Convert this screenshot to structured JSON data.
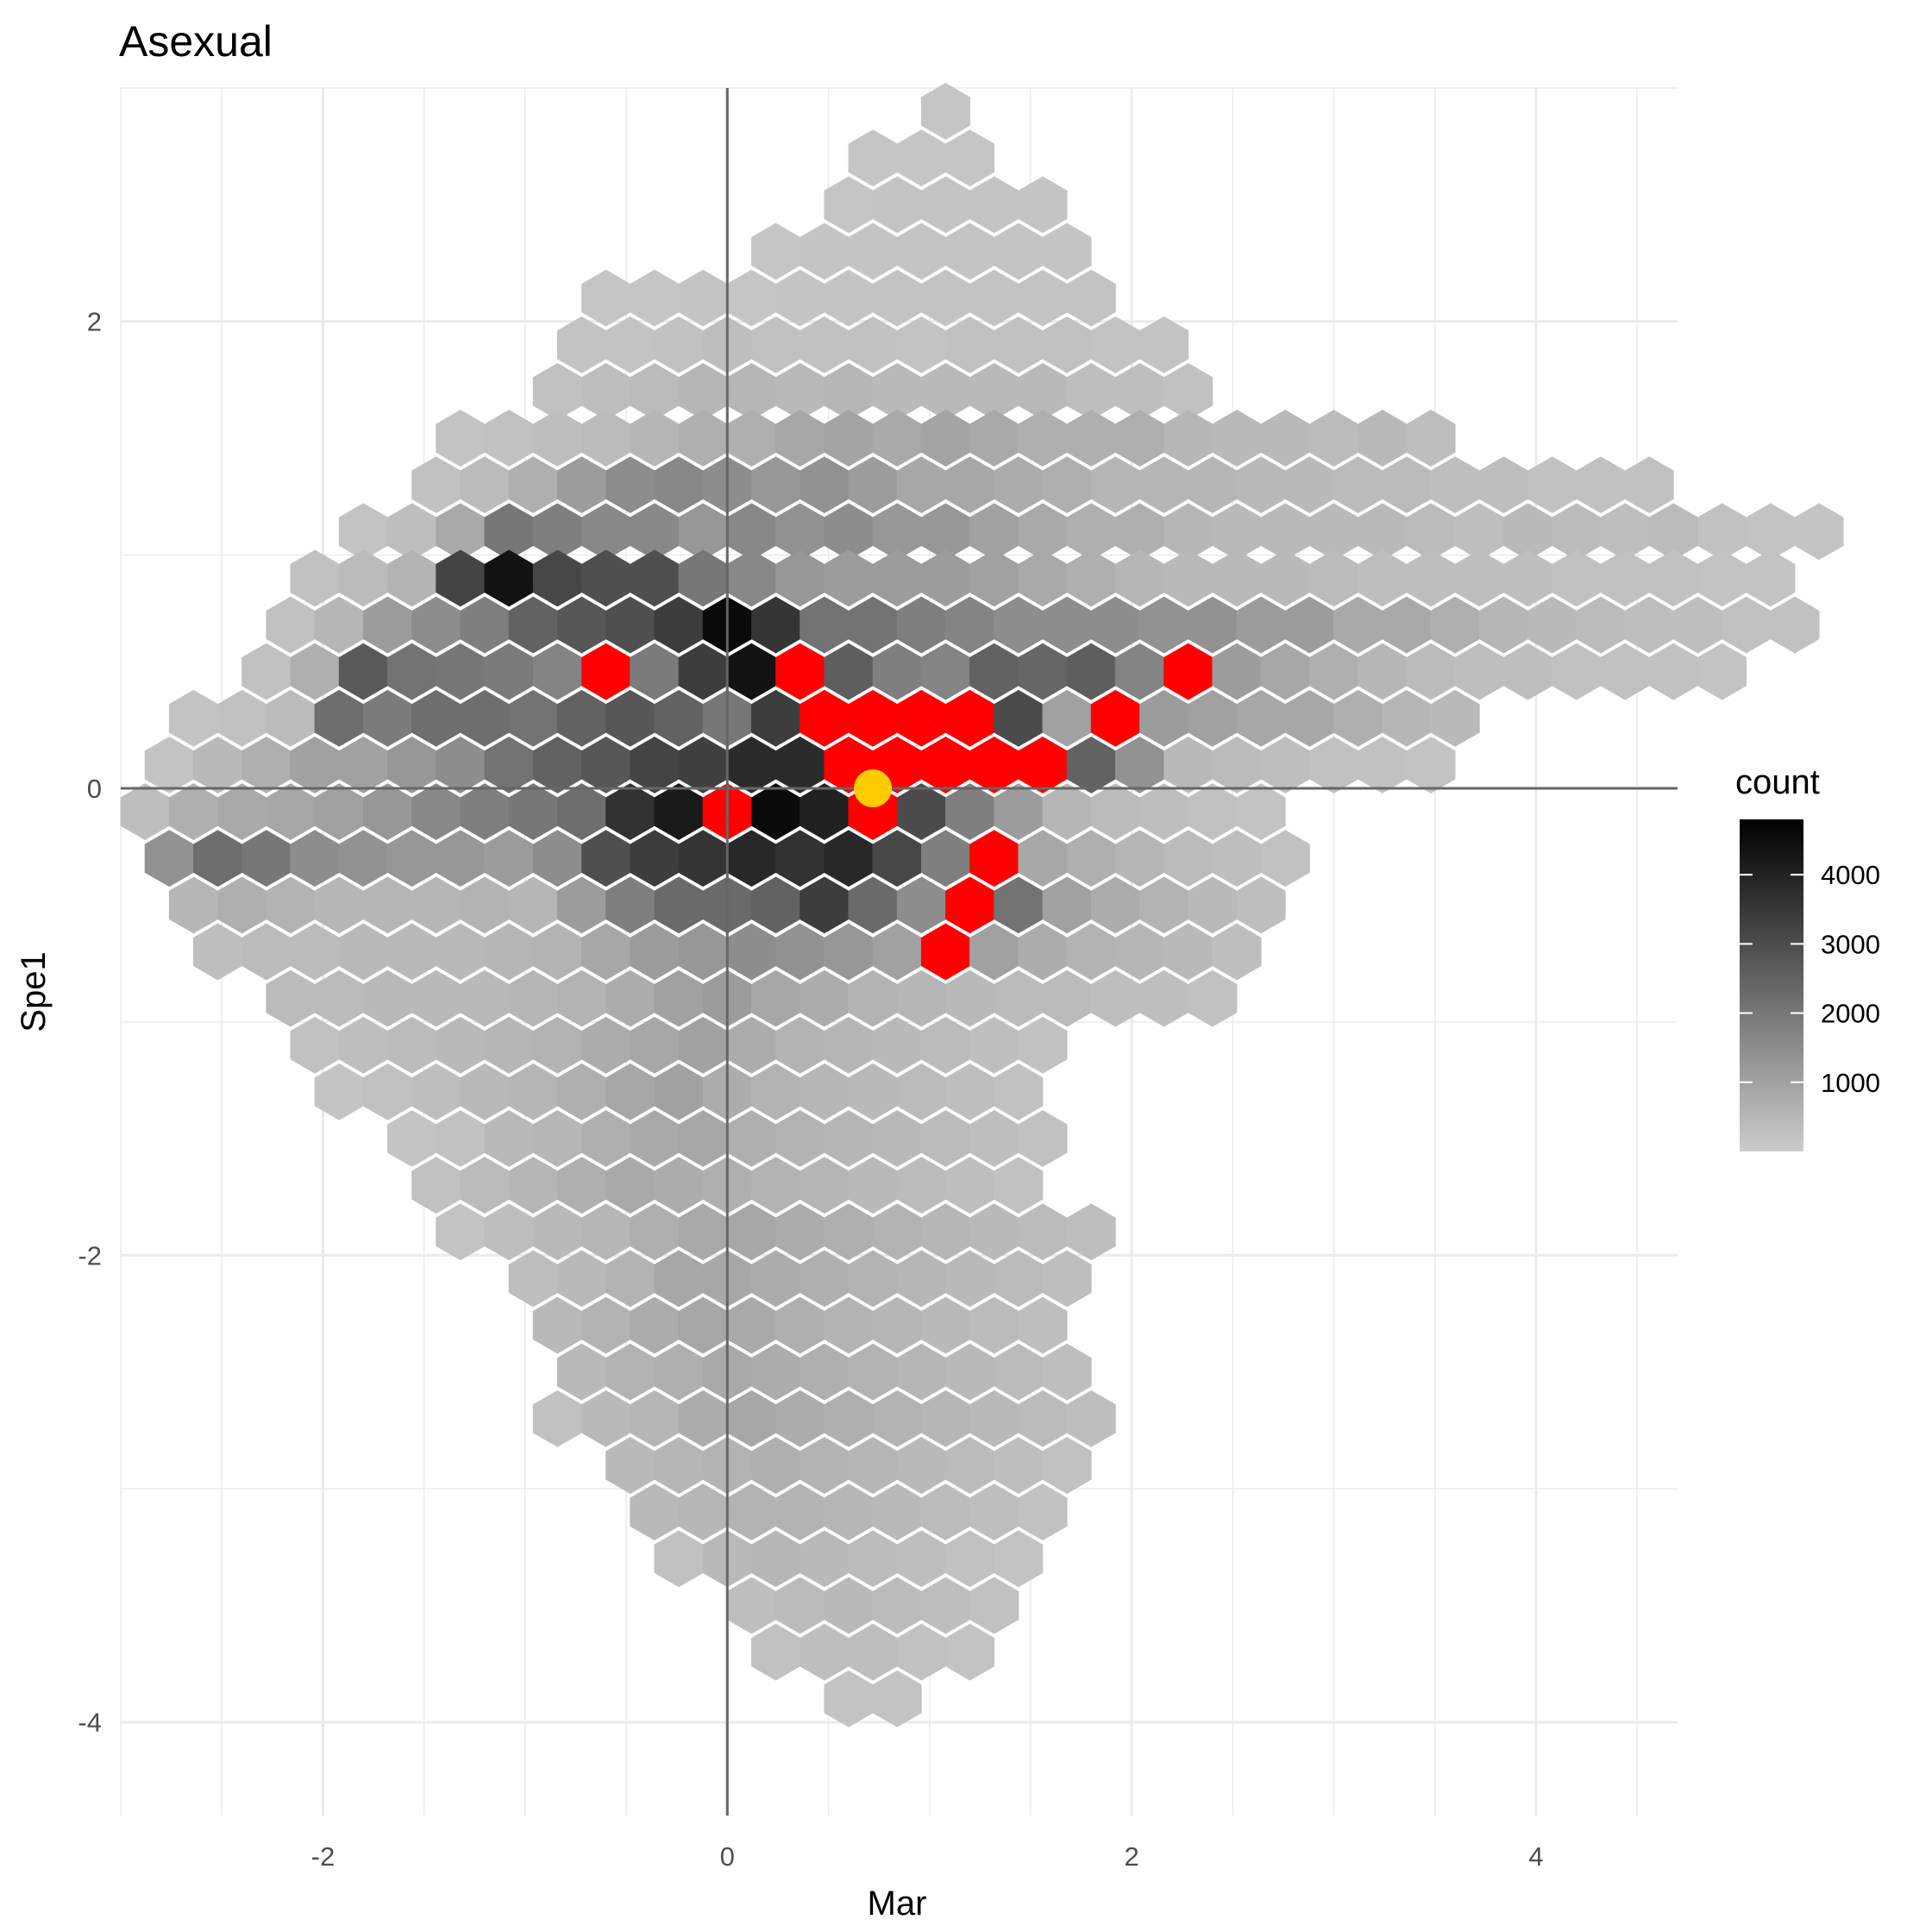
{
  "chart_data": {
    "type": "heatmap",
    "subtype": "hexbin",
    "title": "Asexual",
    "xlabel": "Mar",
    "ylabel": "Spe1",
    "xlim": [
      -3.0,
      4.7
    ],
    "ylim": [
      -4.4,
      3.0
    ],
    "x_ticks": [
      -2,
      0,
      2,
      4
    ],
    "x_tick_labels": [
      "-2",
      "0",
      "2",
      "4"
    ],
    "y_ticks": [
      -4,
      -2,
      0,
      2
    ],
    "y_tick_labels": [
      "-4",
      "-2",
      "0",
      "2"
    ],
    "grid": true,
    "reference_lines": {
      "x": 0,
      "y": 0
    },
    "hex_spacing": {
      "dx": 0.24,
      "dy": 0.2
    },
    "legend": {
      "title": "count",
      "position": "right",
      "range": [
        0,
        4800
      ],
      "ticks": [
        1000,
        2000,
        3000,
        4000
      ],
      "tick_labels": [
        "1000",
        "2000",
        "3000",
        "4000"
      ],
      "color_low": "#cccccc",
      "color_high": "#000000"
    },
    "hex_rows": [
      {
        "y": 2.9,
        "from": 1.08,
        "counts": [
          50
        ]
      },
      {
        "y": 2.7,
        "from": 0.72,
        "counts": [
          50,
          50,
          50
        ]
      },
      {
        "y": 2.5,
        "from": 0.6,
        "counts": [
          50,
          60,
          60,
          60,
          60
        ]
      },
      {
        "y": 2.3,
        "from": 0.24,
        "counts": [
          50,
          60,
          60,
          60,
          60,
          60,
          60
        ]
      },
      {
        "y": 2.1,
        "from": -0.6,
        "counts": [
          50,
          50,
          60,
          50,
          60,
          60,
          80,
          80,
          80,
          80,
          80
        ]
      },
      {
        "y": 1.9,
        "from": -0.72,
        "counts": [
          80,
          80,
          100,
          130,
          100,
          100,
          100,
          80,
          100,
          100,
          100,
          80,
          80
        ]
      },
      {
        "y": 1.7,
        "from": -0.84,
        "counts": [
          100,
          130,
          180,
          250,
          250,
          200,
          250,
          200,
          200,
          200,
          200,
          130,
          130,
          100
        ]
      },
      {
        "y": 1.5,
        "from": -1.32,
        "counts": [
          80,
          100,
          130,
          180,
          250,
          350,
          350,
          500,
          550,
          450,
          550,
          450,
          350,
          350,
          350,
          250,
          200,
          200,
          180,
          200,
          130
        ]
      },
      {
        "y": 1.3,
        "from": -1.44,
        "counts": [
          100,
          180,
          350,
          700,
          1000,
          1100,
          1000,
          800,
          900,
          700,
          500,
          500,
          400,
          350,
          250,
          250,
          250,
          200,
          200,
          180,
          180,
          130,
          130,
          100,
          100,
          100
        ]
      },
      {
        "y": 1.1,
        "from": -1.8,
        "counts": [
          80,
          130,
          450,
          1500,
          1300,
          1100,
          1100,
          800,
          1100,
          900,
          1000,
          800,
          800,
          600,
          450,
          350,
          350,
          250,
          200,
          200,
          200,
          200,
          180,
          130,
          200,
          180,
          130,
          180,
          100,
          80,
          60
        ]
      },
      {
        "y": 0.9,
        "from": -2.04,
        "counts": [
          100,
          180,
          300,
          2800,
          4200,
          2700,
          2500,
          2500,
          1500,
          1100,
          800,
          700,
          700,
          700,
          600,
          450,
          350,
          250,
          200,
          200,
          200,
          180,
          130,
          130,
          130,
          130,
          100,
          100,
          100,
          80,
          80
        ]
      },
      {
        "y": 0.7,
        "from": -2.16,
        "counts": [
          100,
          250,
          700,
          1000,
          1300,
          2000,
          2300,
          2500,
          3000,
          4500,
          3200,
          1600,
          1600,
          1300,
          1200,
          1000,
          1000,
          1000,
          900,
          900,
          700,
          700,
          450,
          450,
          350,
          250,
          200,
          180,
          130,
          130,
          100,
          100
        ]
      },
      {
        "y": 0.5,
        "from": -2.28,
        "counts": [
          100,
          350,
          2200,
          1600,
          1500,
          1400,
          1200,
          5000,
          1400,
          3000,
          4200,
          5000,
          2100,
          1300,
          1200,
          2000,
          1900,
          2100,
          1200,
          5000,
          700,
          500,
          350,
          250,
          180,
          130,
          130,
          100,
          100,
          100,
          80
        ]
      },
      {
        "y": 0.3,
        "from": -2.64,
        "counts": [
          80,
          100,
          180,
          1700,
          1400,
          1700,
          1700,
          1600,
          2000,
          2300,
          2000,
          1500,
          3000,
          5000,
          5000,
          5000,
          5000,
          2600,
          600,
          5000,
          700,
          600,
          500,
          500,
          350,
          250,
          200
        ]
      },
      {
        "y": 0.1,
        "from": -2.76,
        "counts": [
          80,
          200,
          350,
          600,
          600,
          800,
          1000,
          1600,
          2000,
          2300,
          2800,
          2900,
          3500,
          3500,
          5000,
          5000,
          5000,
          5000,
          5000,
          2000,
          900,
          200,
          180,
          130,
          100,
          100,
          80
        ]
      },
      {
        "y": -0.1,
        "from": -2.88,
        "counts": [
          130,
          350,
          450,
          500,
          600,
          800,
          1100,
          1300,
          1500,
          1700,
          3300,
          4000,
          5000,
          4500,
          3800,
          5000,
          2600,
          1300,
          700,
          250,
          180,
          130,
          100,
          80
        ]
      },
      {
        "y": -0.3,
        "from": -2.76,
        "counts": [
          900,
          1700,
          1500,
          1000,
          900,
          800,
          800,
          700,
          1000,
          2500,
          3000,
          3200,
          3600,
          3300,
          3600,
          2700,
          1300,
          5000,
          500,
          350,
          250,
          180,
          130,
          100
        ]
      },
      {
        "y": -0.5,
        "from": -2.64,
        "counts": [
          250,
          350,
          300,
          250,
          250,
          250,
          300,
          250,
          700,
          1300,
          1800,
          1800,
          2000,
          3000,
          1800,
          1000,
          5000,
          1600,
          600,
          400,
          300,
          200,
          130
        ]
      },
      {
        "y": -0.7,
        "from": -2.52,
        "counts": [
          130,
          180,
          180,
          200,
          200,
          200,
          250,
          300,
          500,
          700,
          800,
          1000,
          900,
          800,
          600,
          5000,
          600,
          400,
          300,
          250,
          200,
          130
        ]
      },
      {
        "y": -0.9,
        "from": -2.16,
        "counts": [
          180,
          180,
          200,
          200,
          200,
          250,
          300,
          400,
          600,
          700,
          500,
          400,
          300,
          250,
          200,
          180,
          180,
          130,
          130,
          100
        ]
      },
      {
        "y": -1.1,
        "from": -2.04,
        "counts": [
          100,
          130,
          180,
          200,
          250,
          300,
          400,
          500,
          600,
          400,
          300,
          250,
          200,
          180,
          130,
          100
        ]
      },
      {
        "y": -1.3,
        "from": -1.92,
        "counts": [
          60,
          100,
          130,
          200,
          250,
          350,
          500,
          600,
          400,
          300,
          250,
          200,
          180,
          130,
          100
        ]
      },
      {
        "y": -1.5,
        "from": -1.56,
        "counts": [
          60,
          100,
          200,
          250,
          350,
          450,
          500,
          350,
          300,
          250,
          200,
          180,
          130,
          100
        ]
      },
      {
        "y": -1.7,
        "from": -1.44,
        "counts": [
          100,
          180,
          250,
          350,
          450,
          400,
          350,
          300,
          250,
          200,
          180,
          130,
          100
        ]
      },
      {
        "y": -1.9,
        "from": -1.32,
        "counts": [
          80,
          130,
          200,
          250,
          350,
          450,
          500,
          400,
          350,
          300,
          250,
          200,
          180,
          130
        ]
      },
      {
        "y": -2.1,
        "from": -0.96,
        "counts": [
          130,
          200,
          300,
          500,
          500,
          400,
          350,
          300,
          250,
          200,
          180,
          130
        ]
      },
      {
        "y": -2.3,
        "from": -0.84,
        "counts": [
          200,
          300,
          400,
          500,
          450,
          350,
          300,
          250,
          200,
          180,
          130
        ]
      },
      {
        "y": -2.5,
        "from": -0.72,
        "counts": [
          200,
          300,
          350,
          450,
          400,
          350,
          300,
          250,
          200,
          180,
          130
        ]
      },
      {
        "y": -2.7,
        "from": -0.84,
        "counts": [
          100,
          200,
          250,
          400,
          500,
          400,
          350,
          300,
          250,
          200,
          180,
          130
        ]
      },
      {
        "y": -2.9,
        "from": -0.48,
        "counts": [
          200,
          250,
          300,
          350,
          300,
          250,
          200,
          180,
          130,
          100
        ]
      },
      {
        "y": -3.1,
        "from": -0.36,
        "counts": [
          200,
          250,
          300,
          300,
          250,
          200,
          180,
          130,
          100
        ]
      },
      {
        "y": -3.3,
        "from": -0.24,
        "counts": [
          100,
          200,
          250,
          200,
          180,
          130,
          100,
          80
        ]
      },
      {
        "y": -3.5,
        "from": 0.12,
        "counts": [
          130,
          180,
          200,
          180,
          130,
          100
        ]
      },
      {
        "y": -3.7,
        "from": 0.24,
        "counts": [
          100,
          130,
          130,
          100,
          80
        ]
      },
      {
        "y": -3.9,
        "from": 0.6,
        "counts": [
          80,
          80
        ]
      }
    ],
    "highlight_point": {
      "x": 0.72,
      "y": 0.0,
      "color": "#ffcc00"
    },
    "highlight_hex_color": "#ff0000"
  }
}
